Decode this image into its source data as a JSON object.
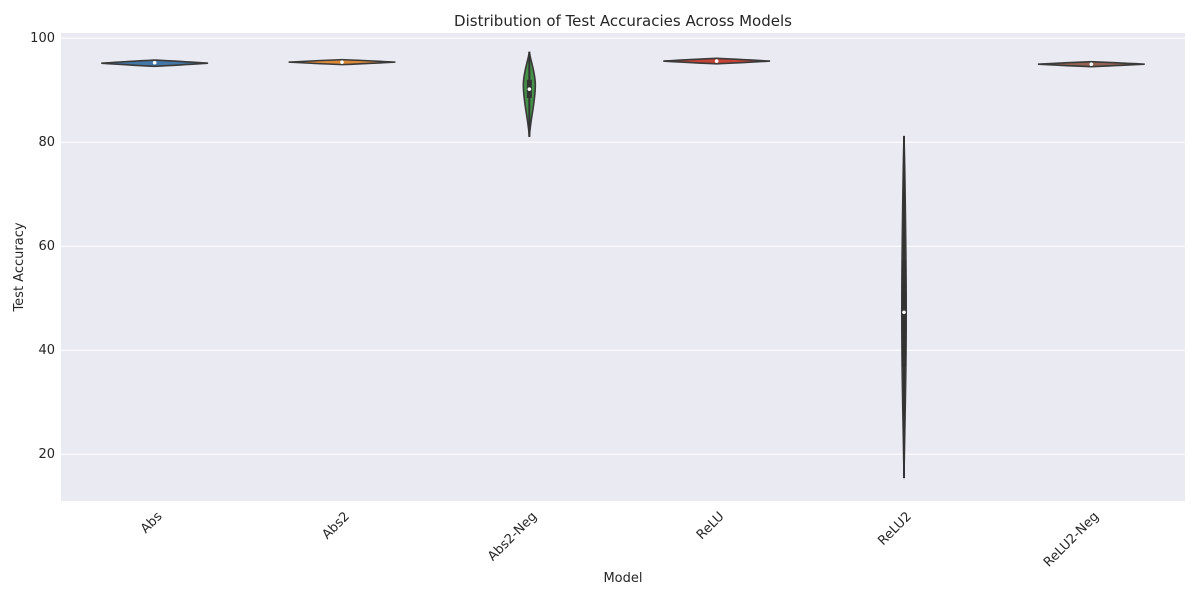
{
  "chart_data": {
    "type": "violin",
    "title": "Distribution of Test Accuracies Across Models",
    "xlabel": "Model",
    "ylabel": "Test Accuracy",
    "ylim": [
      11,
      101
    ],
    "yticks": [
      20,
      40,
      60,
      80,
      100
    ],
    "grid": true,
    "legend": "none",
    "categories": [
      "Abs",
      "Abs2",
      "Abs2-Neg",
      "ReLU",
      "ReLU2",
      "ReLU2-Neg"
    ],
    "series": [
      {
        "category": "Abs",
        "color": "#3a6fa1",
        "min": 94.8,
        "q1": 95.0,
        "median": 95.3,
        "q3": 95.5,
        "max": 95.8,
        "peak": 95.2,
        "range_low": 95.1,
        "range_high": 95.3
      },
      {
        "category": "Abs2",
        "color": "#d9822b",
        "min": 95.0,
        "q1": 95.2,
        "median": 95.4,
        "q3": 95.6,
        "max": 95.8,
        "peak": 95.4,
        "range_low": 95.3,
        "range_high": 95.5
      },
      {
        "category": "Abs2-Neg",
        "color": "#3b8a3e",
        "min": 81.0,
        "q1": 88.5,
        "median": 90.2,
        "q3": 92.0,
        "max": 97.4,
        "peak": 91.0
      },
      {
        "category": "ReLU",
        "color": "#c0392b",
        "min": 95.1,
        "q1": 95.4,
        "median": 95.6,
        "q3": 95.8,
        "max": 96.0,
        "peak": 95.6,
        "range_low": 95.5,
        "range_high": 95.7
      },
      {
        "category": "ReLU2",
        "color": "#555555",
        "min": 15.4,
        "q1": 36.8,
        "median": 47.3,
        "q3": 57.4,
        "max": 81.2,
        "peak": 47.0
      },
      {
        "category": "ReLU2-Neg",
        "color": "#8e5a4a",
        "min": 94.6,
        "q1": 94.8,
        "median": 95.0,
        "q3": 95.2,
        "max": 95.4,
        "peak": 95.0,
        "range_low": 94.9,
        "range_high": 95.1
      }
    ]
  }
}
